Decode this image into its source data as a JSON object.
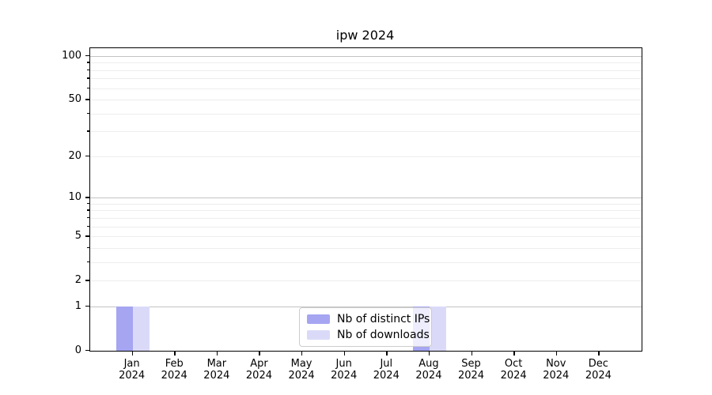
{
  "chart_data": {
    "type": "bar",
    "title": "ipw 2024",
    "x": {
      "months": [
        "Jan",
        "Feb",
        "Mar",
        "Apr",
        "May",
        "Jun",
        "Jul",
        "Aug",
        "Sep",
        "Oct",
        "Nov",
        "Dec"
      ],
      "year": "2024"
    },
    "series": [
      {
        "name": "Nb of distinct IPs",
        "color": "#a5a5f2",
        "values": [
          1,
          0,
          0,
          0,
          0,
          0,
          0,
          1,
          0,
          0,
          0,
          0
        ]
      },
      {
        "name": "Nb of downloads",
        "color": "#dadaf8",
        "values": [
          1,
          0,
          0,
          0,
          0,
          0,
          0,
          1,
          0,
          0,
          0,
          0
        ]
      }
    ],
    "y_axis": {
      "scale": "log1p",
      "labeled_ticks": [
        0,
        1,
        2,
        5,
        10,
        20,
        50,
        100
      ],
      "major_gridlines": [
        1,
        10,
        100
      ],
      "minor_gridlines": [
        2,
        3,
        4,
        5,
        6,
        7,
        8,
        9,
        20,
        30,
        40,
        50,
        60,
        70,
        80,
        90
      ],
      "ylim": [
        0,
        114
      ]
    },
    "grid": true,
    "legend": {
      "position": "lower center, inside plot",
      "entries": [
        "Nb of distinct IPs",
        "Nb of downloads"
      ]
    },
    "colors": {
      "major_grid": "#c3c3c3",
      "minor_grid": "#ededed",
      "axis": "#000000",
      "background": "#ffffff",
      "legend_border": "#cccccc"
    }
  }
}
